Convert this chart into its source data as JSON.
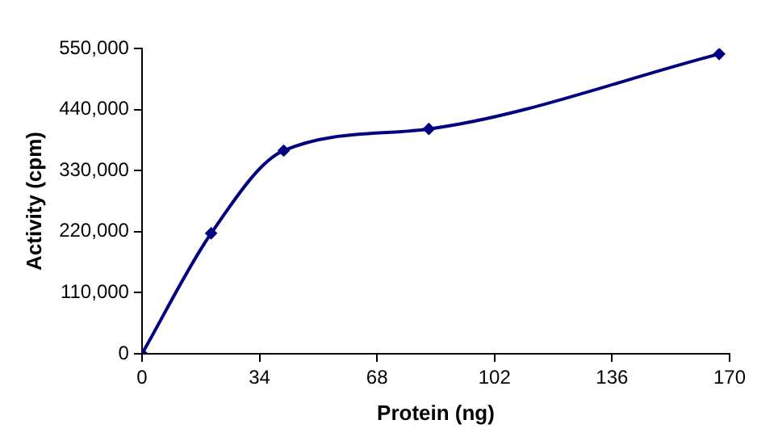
{
  "chart_data": {
    "type": "line",
    "xlabel": "Protein (ng)",
    "ylabel": "Activity (cpm)",
    "x": [
      0,
      20,
      41,
      83,
      167
    ],
    "series": [
      {
        "color": "#000080",
        "values": [
          0,
          217000,
          366000,
          405000,
          540000
        ]
      }
    ],
    "xlim": [
      0,
      170
    ],
    "xticks": [
      0,
      34,
      68,
      102,
      136,
      170
    ],
    "ylim": [
      0,
      550000
    ],
    "yticks": [
      {
        "value": 0,
        "label": "0"
      },
      {
        "value": 110000,
        "label": "110,000"
      },
      {
        "value": 220000,
        "label": "220,000"
      },
      {
        "value": 330000,
        "label": "330,000"
      },
      {
        "value": 440000,
        "label": "440,000"
      },
      {
        "value": 550000,
        "label": "550,000"
      }
    ],
    "grid": false,
    "legend": false,
    "marker": "diamond",
    "line_style": "solid"
  }
}
